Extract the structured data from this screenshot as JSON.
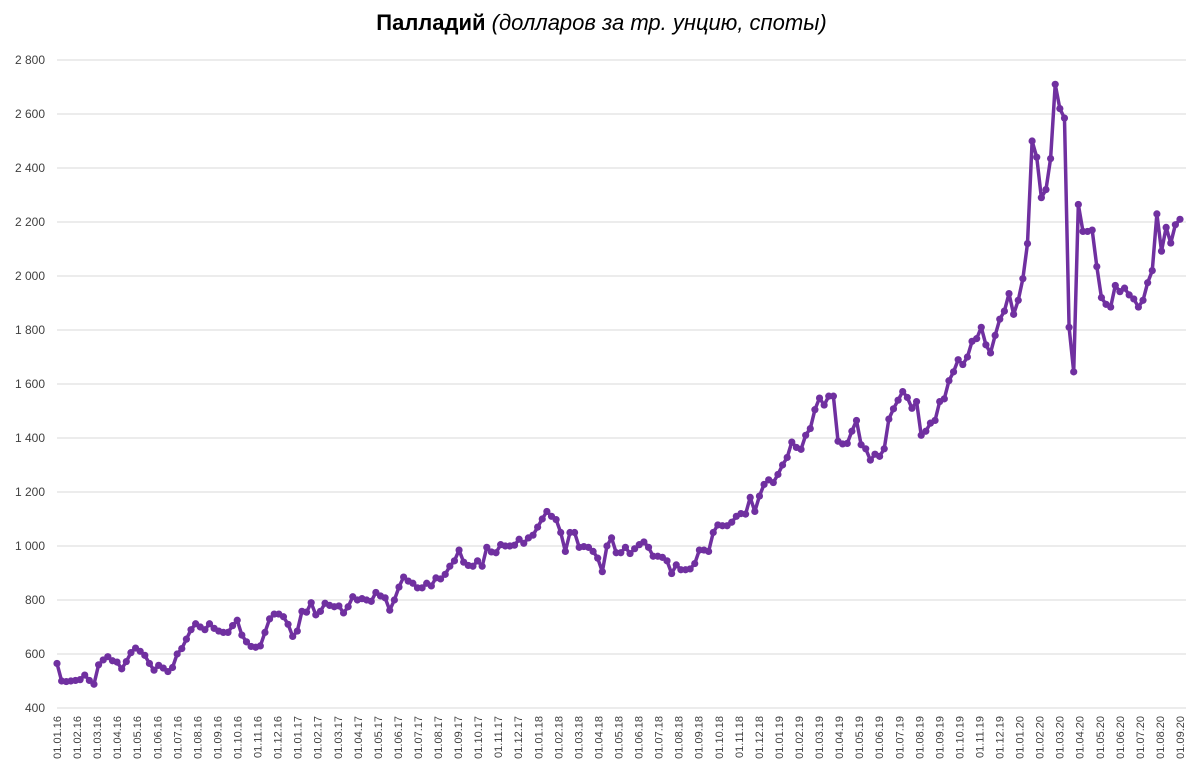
{
  "chart_data": {
    "type": "line",
    "title": "Палладий",
    "subtitle": "(долларов за тр. унцию, споты)",
    "ylim": [
      400,
      2800
    ],
    "yticks": [
      "400",
      "600",
      "800",
      "1 000",
      "1 200",
      "1 400",
      "1 600",
      "1 800",
      "2 000",
      "2 200",
      "2 400",
      "2 600",
      "2 800"
    ],
    "yticks_values": [
      400,
      600,
      800,
      1000,
      1200,
      1400,
      1600,
      1800,
      2000,
      2200,
      2400,
      2600,
      2800
    ],
    "xtick_labels": [
      "01.01.16",
      "01.02.16",
      "01.03.16",
      "01.04.16",
      "01.05.16",
      "01.06.16",
      "01.07.16",
      "01.08.16",
      "01.09.16",
      "01.10.16",
      "01.11.16",
      "01.12.16",
      "01.01.17",
      "01.02.17",
      "01.03.17",
      "01.04.17",
      "01.05.17",
      "01.06.17",
      "01.07.17",
      "01.08.17",
      "01.09.17",
      "01.10.17",
      "01.11.17",
      "01.12.17",
      "01.01.18",
      "01.02.18",
      "01.03.18",
      "01.04.18",
      "01.05.18",
      "01.06.18",
      "01.07.18",
      "01.08.18",
      "01.09.18",
      "01.10.18",
      "01.11.18",
      "01.12.18",
      "01.01.19",
      "01.02.19",
      "01.03.19",
      "01.04.19",
      "01.05.19",
      "01.06.19",
      "01.07.19",
      "01.08.19",
      "01.09.19",
      "01.10.19",
      "01.11.19",
      "01.12.19",
      "01.01.20",
      "01.02.20",
      "01.03.20",
      "01.04.20",
      "01.05.20",
      "01.06.20",
      "01.07.20",
      "01.08.20",
      "01.09.20"
    ],
    "grid": true,
    "legend": "none",
    "color": "#7030a0",
    "values": [
      565,
      500,
      498,
      500,
      502,
      505,
      522,
      502,
      488,
      560,
      578,
      590,
      575,
      570,
      545,
      572,
      605,
      622,
      610,
      595,
      565,
      540,
      558,
      548,
      535,
      550,
      600,
      620,
      655,
      690,
      712,
      700,
      690,
      712,
      695,
      685,
      680,
      680,
      705,
      725,
      670,
      645,
      628,
      625,
      630,
      680,
      730,
      748,
      748,
      738,
      710,
      665,
      685,
      758,
      755,
      790,
      745,
      758,
      788,
      780,
      775,
      778,
      752,
      775,
      812,
      800,
      805,
      800,
      795,
      828,
      815,
      808,
      762,
      800,
      848,
      885,
      870,
      862,
      845,
      845,
      862,
      852,
      882,
      878,
      895,
      925,
      945,
      985,
      940,
      928,
      925,
      945,
      925,
      995,
      978,
      975,
      1005,
      1000,
      1000,
      1003,
      1025,
      1010,
      1030,
      1040,
      1070,
      1100,
      1128,
      1110,
      1098,
      1050,
      980,
      1050,
      1050,
      995,
      998,
      995,
      980,
      955,
      905,
      1000,
      1030,
      975,
      975,
      995,
      972,
      990,
      1005,
      1015,
      995,
      962,
      962,
      958,
      945,
      898,
      930,
      912,
      912,
      915,
      935,
      985,
      985,
      980,
      1050,
      1078,
      1075,
      1075,
      1088,
      1110,
      1120,
      1118,
      1180,
      1128,
      1185,
      1228,
      1245,
      1235,
      1265,
      1300,
      1328,
      1385,
      1365,
      1358,
      1410,
      1435,
      1505,
      1548,
      1522,
      1555,
      1555,
      1388,
      1378,
      1380,
      1425,
      1465,
      1375,
      1360,
      1318,
      1340,
      1332,
      1360,
      1470,
      1508,
      1540,
      1572,
      1550,
      1510,
      1535,
      1410,
      1425,
      1455,
      1465,
      1535,
      1545,
      1612,
      1645,
      1690,
      1672,
      1700,
      1758,
      1768,
      1810,
      1745,
      1715,
      1780,
      1840,
      1870,
      1935,
      1858,
      1910,
      1990,
      2120,
      2500,
      2440,
      2290,
      2320,
      2435,
      2710,
      2620,
      2585,
      1810,
      1645,
      2265,
      2165,
      2165,
      2170,
      2035,
      1920,
      1895,
      1885,
      1965,
      1942,
      1955,
      1930,
      1915,
      1885,
      1910,
      1975,
      2020,
      2230,
      2092,
      2180,
      2122,
      2190,
      2210
    ]
  }
}
